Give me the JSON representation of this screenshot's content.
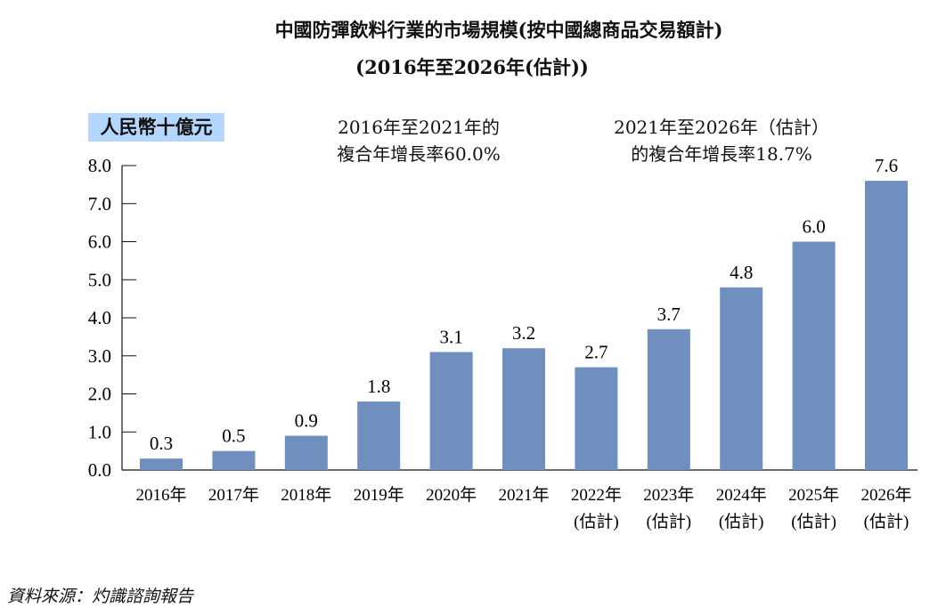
{
  "chart_data": {
    "type": "bar",
    "title": "中國防彈飲料行業的市場規模(按中國總商品交易額計)",
    "subtitle": "(2016年至2026年(估計))",
    "ylabel": "人民幣十億元",
    "xlabel": "",
    "ylim": [
      0,
      8
    ],
    "yticks": [
      "0.0",
      "1.0",
      "2.0",
      "3.0",
      "4.0",
      "5.0",
      "6.0",
      "7.0",
      "8.0"
    ],
    "categories": [
      [
        "2016年",
        ""
      ],
      [
        "2017年",
        ""
      ],
      [
        "2018年",
        ""
      ],
      [
        "2019年",
        ""
      ],
      [
        "2020年",
        ""
      ],
      [
        "2021年",
        ""
      ],
      [
        "2022年",
        "(估計)"
      ],
      [
        "2023年",
        "(估計)"
      ],
      [
        "2024年",
        "(估計)"
      ],
      [
        "2025年",
        "(估計)"
      ],
      [
        "2026年",
        "(估計)"
      ]
    ],
    "values": [
      0.3,
      0.5,
      0.9,
      1.8,
      3.1,
      3.2,
      2.7,
      3.7,
      4.8,
      6.0,
      7.6
    ],
    "annotations": {
      "cagr1": [
        "2016年至2021年的",
        "複合年增長率60.0%"
      ],
      "cagr2": [
        "2021年至2026年（估計）",
        "的複合年增長率18.7%"
      ]
    },
    "bar_color": "#6f8fbf",
    "grid": false
  },
  "source": "資料來源：灼識諮詢報告"
}
